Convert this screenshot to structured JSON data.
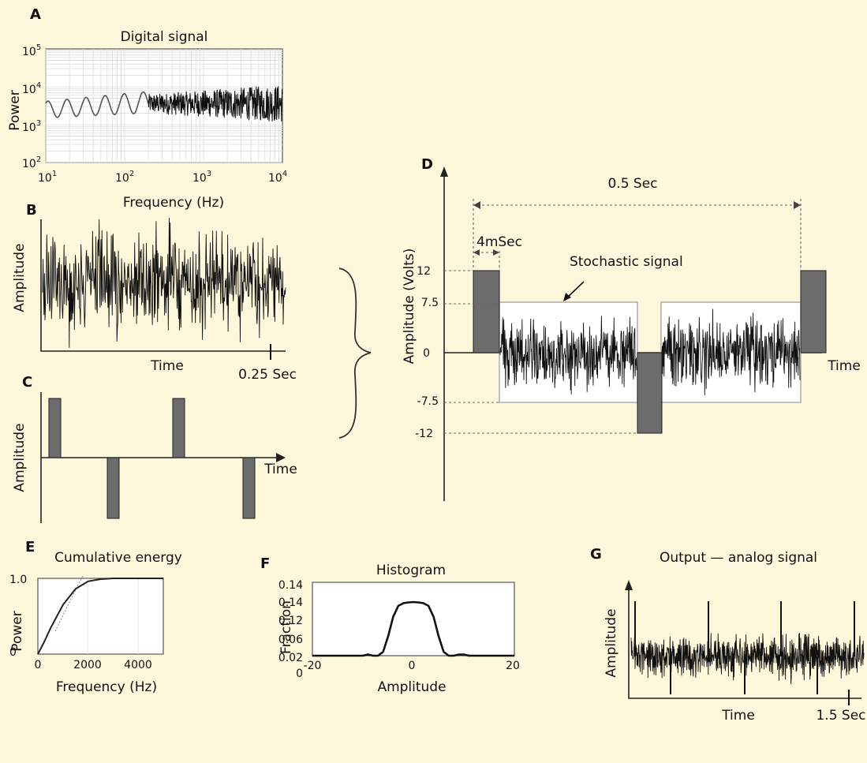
{
  "panels": {
    "A": {
      "label": "A",
      "title": "Digital signal",
      "xlabel": "Frequency (Hz)",
      "ylabel": "Power",
      "xticks": [
        {
          "base": "10",
          "exp": "1"
        },
        {
          "base": "10",
          "exp": "2"
        },
        {
          "base": "10",
          "exp": "3"
        },
        {
          "base": "10",
          "exp": "4"
        }
      ],
      "yticks": [
        {
          "base": "10",
          "exp": "5"
        },
        {
          "base": "10",
          "exp": "4"
        },
        {
          "base": "10",
          "exp": "3"
        },
        {
          "base": "10",
          "exp": "2"
        }
      ]
    },
    "B": {
      "label": "B",
      "xlabel": "Time",
      "ylabel": "Amplitude",
      "end_label": "0.25 Sec"
    },
    "C": {
      "label": "C",
      "xlabel": "Time",
      "ylabel": "Amplitude"
    },
    "D": {
      "label": "D",
      "ylabel": "Amplitude (Volts)",
      "xlabel": "Time",
      "span_label": "0.5 Sec",
      "pulse_label": "4mSec",
      "noise_label": "Stochastic signal",
      "yticks": [
        "12",
        "7.5",
        "0",
        "-7.5",
        "-12"
      ]
    },
    "E": {
      "label": "E",
      "title": "Cumulative energy",
      "xlabel": "Frequency (Hz)",
      "ylabel": "Power"
    },
    "F": {
      "label": "F",
      "title": "Histogram",
      "xlabel": "Amplitude",
      "ylabel": "Fraction"
    },
    "G": {
      "label": "G",
      "title": "Output — analog signal",
      "xlabel": "Time",
      "ylabel": "Amplitude",
      "end_label": "1.5 Sec"
    }
  },
  "chart_data": [
    {
      "panel": "A",
      "type": "line",
      "title": "Digital signal",
      "xlabel": "Frequency (Hz)",
      "ylabel": "Power",
      "xscale": "log",
      "yscale": "log",
      "xlim": [
        10,
        10000
      ],
      "ylim": [
        100,
        100000
      ],
      "grid": true,
      "x": [
        10,
        20,
        30,
        50,
        70,
        100,
        150,
        200,
        300,
        500,
        700,
        1000,
        2000,
        3000,
        5000,
        7000,
        10000
      ],
      "y": [
        2500,
        5000,
        2300,
        2000,
        3500,
        2000,
        2200,
        3600,
        4000,
        4500,
        5000,
        4500,
        4000,
        4000,
        4000,
        4000,
        4000
      ]
    },
    {
      "panel": "B",
      "type": "line",
      "xlabel": "Time",
      "ylabel": "Amplitude",
      "xlim": [
        0,
        0.25
      ],
      "xticks": [
        "0.25 Sec"
      ],
      "description_series": "random broadband noise"
    },
    {
      "panel": "C",
      "type": "bar",
      "xlabel": "Time",
      "ylabel": "Amplitude",
      "pulses": [
        1,
        -1,
        1,
        -1
      ]
    },
    {
      "panel": "D",
      "type": "line",
      "ylabel": "Amplitude (Volts)",
      "xlabel": "Time",
      "yticks": [
        12,
        7.5,
        0,
        -7.5,
        -12
      ],
      "ylim": [
        -12,
        12
      ],
      "pulse_duration": "4mSec",
      "period": "0.5 Sec",
      "segments": [
        {
          "kind": "pulse",
          "value": 12
        },
        {
          "kind": "noise",
          "range": [
            -7.5,
            7.5
          ]
        },
        {
          "kind": "pulse",
          "value": -12
        },
        {
          "kind": "noise",
          "range": [
            -7.5,
            7.5
          ]
        },
        {
          "kind": "pulse",
          "value": 12
        }
      ]
    },
    {
      "panel": "E",
      "type": "line",
      "title": "Cumulative energy",
      "xlabel": "Frequency (Hz)",
      "ylabel": "Power",
      "xlim": [
        0,
        5000
      ],
      "ylim": [
        0,
        1.0
      ],
      "xticks": [
        0,
        2000,
        4000
      ],
      "yticks": [
        0,
        1.0
      ],
      "x": [
        0,
        250,
        500,
        1000,
        1500,
        2000,
        2500,
        3000,
        4000,
        5000
      ],
      "y": [
        0,
        0.16,
        0.34,
        0.65,
        0.86,
        0.96,
        0.99,
        1.0,
        1.0,
        1.0
      ]
    },
    {
      "panel": "F",
      "type": "line",
      "title": "Histogram",
      "xlabel": "Amplitude",
      "ylabel": "Fraction",
      "xlim": [
        -20,
        20
      ],
      "xticks": [
        -20,
        0,
        20
      ],
      "yticks": [
        "0",
        "0.02",
        "0.06",
        "0.12",
        "0.14",
        "0.14"
      ],
      "x": [
        -20,
        -10,
        -9,
        -8,
        -7,
        -6,
        -5,
        -4,
        -3,
        -2,
        -1,
        0,
        1,
        2,
        3,
        4,
        5,
        6,
        7,
        8,
        9,
        10,
        11,
        20
      ],
      "y": [
        0,
        0,
        0.003,
        0,
        0,
        0.01,
        0.05,
        0.1,
        0.128,
        0.135,
        0.137,
        0.138,
        0.137,
        0.135,
        0.128,
        0.1,
        0.05,
        0.01,
        0,
        0,
        0.003,
        0.003,
        0,
        0
      ]
    },
    {
      "panel": "G",
      "type": "line",
      "title": "Output — analog signal",
      "xlabel": "Time",
      "ylabel": "Amplitude",
      "xlim": [
        0,
        1.5
      ],
      "xticks": [
        "1.5 Sec"
      ],
      "description_series": "noise with periodic spikes"
    }
  ]
}
